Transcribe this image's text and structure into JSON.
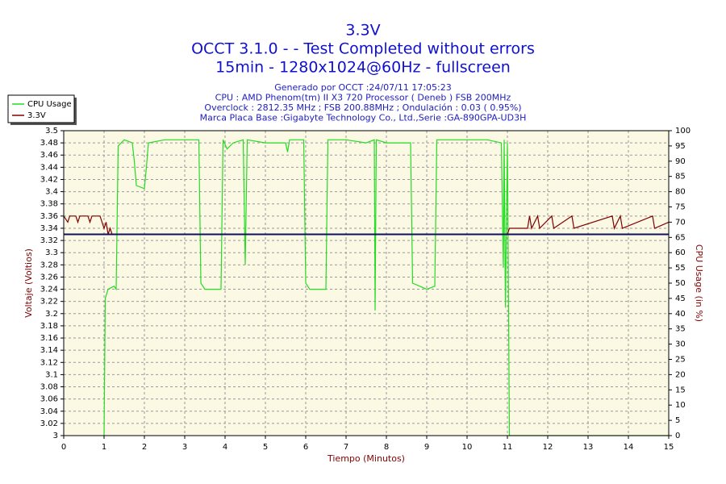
{
  "chart_data": {
    "type": "line",
    "title": "3.3V",
    "subtitle": "OCCT 3.1.0 -  - Test Completed without errors",
    "subtitle2": "15min - 1280x1024@60Hz - fullscreen",
    "info_lines": [
      "Generado por OCCT :24/07/11 17:05:23",
      "CPU : AMD Phenom(tm) II X3 720 Processor ( Deneb ) FSB 200MHz",
      "Overclock : 2812.35 MHz ; FSB 200.88MHz ; Ondulación : 0.03 ( 0.95%)",
      "Marca Placa Base :Gigabyte Technology Co., Ltd.,Serie :GA-890GPA-UD3H"
    ],
    "x_label": "Tiempo (Minutos)",
    "y_label": "Voltaje (Voltios)",
    "y2_label": "CPU Usage (in %)",
    "xlim": [
      0,
      15
    ],
    "xticks": [
      0,
      1,
      2,
      3,
      4,
      5,
      6,
      7,
      8,
      9,
      10,
      11,
      12,
      13,
      14,
      15
    ],
    "ylim": [
      3,
      3.5
    ],
    "yticks": [
      3,
      3.02,
      3.04,
      3.06,
      3.08,
      3.1,
      3.12,
      3.14,
      3.16,
      3.18,
      3.2,
      3.22,
      3.24,
      3.26,
      3.28,
      3.3,
      3.32,
      3.34,
      3.36,
      3.38,
      3.4,
      3.42,
      3.44,
      3.46,
      3.48,
      3.5
    ],
    "y2lim": [
      0,
      100
    ],
    "y2ticks": [
      0,
      5,
      10,
      15,
      20,
      25,
      30,
      35,
      40,
      45,
      50,
      55,
      60,
      65,
      70,
      75,
      80,
      85,
      90,
      95,
      100
    ],
    "grid": true,
    "legend": "top-left",
    "reference_line": {
      "value": 3.33,
      "color": "#101060"
    },
    "series": [
      {
        "name": "CPU Usage",
        "color": "#22dd22",
        "axis": "y2",
        "x": [
          1.0,
          1.03,
          1.1,
          1.25,
          1.3,
          1.35,
          1.5,
          1.7,
          1.75,
          1.8,
          2.0,
          2.05,
          2.1,
          2.5,
          3.0,
          3.35,
          3.4,
          3.5,
          3.9,
          3.95,
          4.05,
          4.2,
          4.45,
          4.5,
          4.55,
          5.0,
          5.5,
          5.55,
          5.6,
          5.95,
          6.0,
          6.1,
          6.5,
          6.55,
          7.0,
          7.5,
          7.7,
          7.72,
          7.75,
          8.0,
          8.6,
          8.65,
          9.0,
          9.2,
          9.25,
          10.0,
          10.5,
          10.85,
          10.9,
          10.92,
          10.95,
          11.0,
          11.05,
          15
        ],
        "values": [
          0,
          45,
          48,
          49,
          48,
          95,
          97,
          96,
          90,
          82,
          81,
          88,
          96,
          97,
          97,
          97,
          50,
          48,
          48,
          97,
          94,
          96,
          97,
          56,
          97,
          96,
          96,
          93,
          97,
          97,
          50,
          48,
          48,
          97,
          97,
          96,
          97,
          41,
          97,
          96,
          96,
          50,
          48,
          49,
          97,
          97,
          97,
          96,
          55,
          97,
          42,
          96,
          0,
          0
        ]
      },
      {
        "name": "3.3V",
        "color": "#800000",
        "x": [
          0,
          0.1,
          0.15,
          0.3,
          0.35,
          0.4,
          0.6,
          0.65,
          0.7,
          0.9,
          0.95,
          1.0,
          1.05,
          1.1,
          1.15,
          1.2,
          11.0,
          11.05,
          11.5,
          11.55,
          11.6,
          11.75,
          11.8,
          12.1,
          12.15,
          12.6,
          12.65,
          13.6,
          13.65,
          13.8,
          13.85,
          14.6,
          14.65,
          15
        ],
        "values": [
          3.36,
          3.35,
          3.36,
          3.36,
          3.35,
          3.36,
          3.36,
          3.35,
          3.36,
          3.36,
          3.35,
          3.34,
          3.35,
          3.33,
          3.34,
          3.33,
          3.33,
          3.34,
          3.34,
          3.36,
          3.34,
          3.36,
          3.34,
          3.36,
          3.34,
          3.36,
          3.34,
          3.36,
          3.34,
          3.36,
          3.34,
          3.36,
          3.34,
          3.35
        ]
      }
    ]
  }
}
